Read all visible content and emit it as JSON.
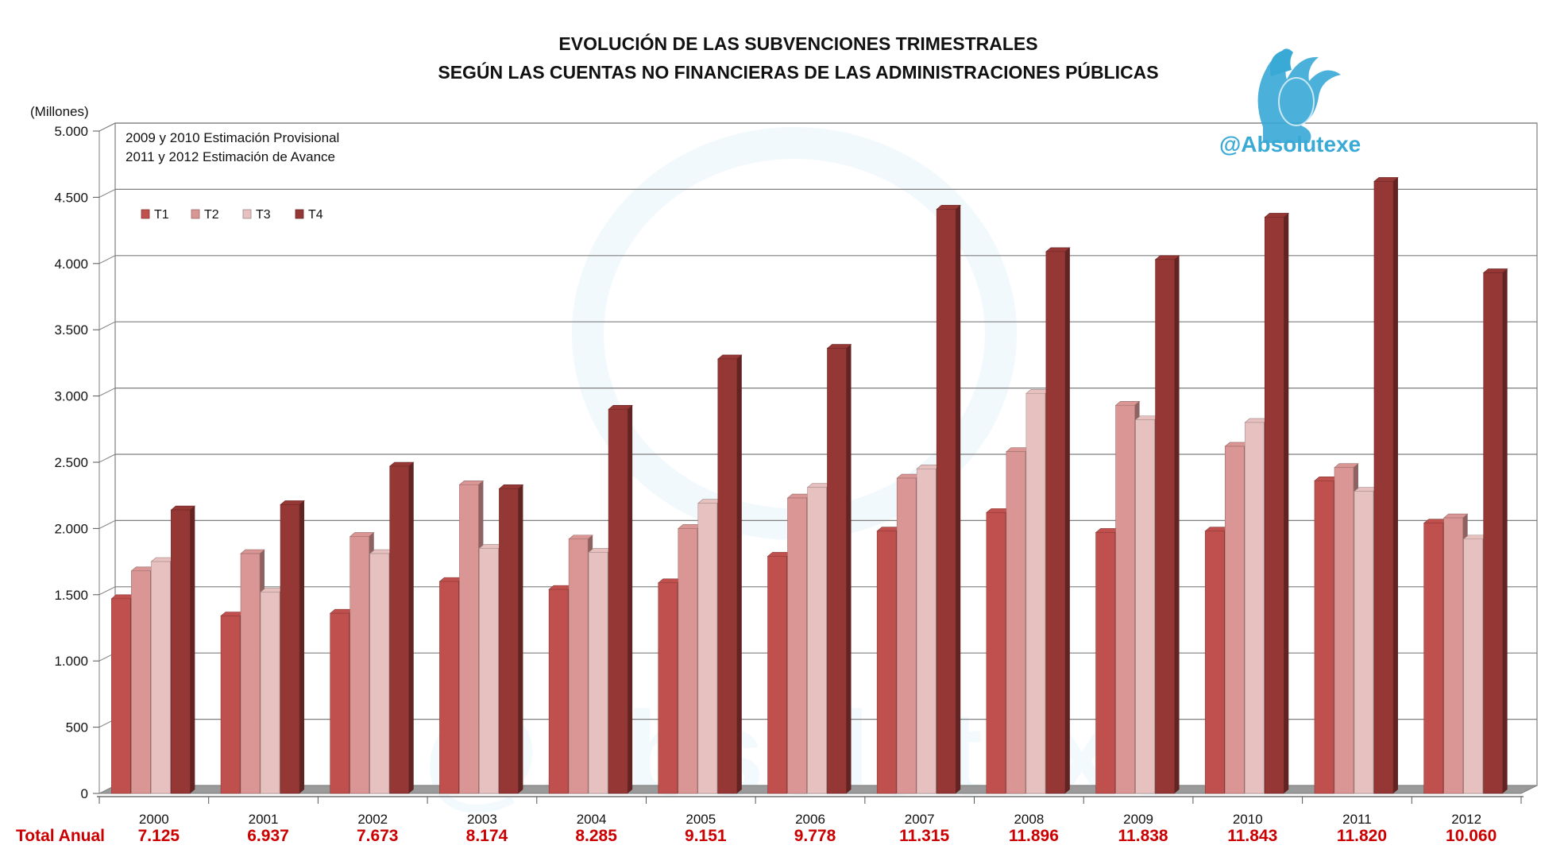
{
  "chart_data": {
    "type": "bar",
    "title_lines": [
      "EVOLUCIÓN DE LAS SUBVENCIONES TRIMESTRALES",
      "SEGÚN LAS CUENTAS NO FINANCIERAS DE LAS ADMINISTRACIONES PÚBLICAS"
    ],
    "unit_label": "(Millones)",
    "notes": [
      "2009 y 2010 Estimación Provisional",
      "2011 y 2012 Estimación de Avance"
    ],
    "categories": [
      "2000",
      "2001",
      "2002",
      "2003",
      "2004",
      "2005",
      "2006",
      "2007",
      "2008",
      "2009",
      "2010",
      "2011",
      "2012"
    ],
    "series": [
      {
        "name": "T1",
        "values": [
          1470,
          1340,
          1360,
          1600,
          1540,
          1590,
          1790,
          1980,
          2120,
          1970,
          1980,
          2360,
          2040
        ]
      },
      {
        "name": "T2",
        "values": [
          1680,
          1810,
          1940,
          2330,
          1920,
          2000,
          2230,
          2380,
          2580,
          2930,
          2620,
          2460,
          2080
        ]
      },
      {
        "name": "T3",
        "values": [
          1750,
          1520,
          1810,
          1850,
          1820,
          2190,
          2310,
          2450,
          3020,
          2820,
          2800,
          2280,
          1920
        ]
      },
      {
        "name": "T4",
        "values": [
          2140,
          2180,
          2470,
          2300,
          2900,
          3280,
          3360,
          4410,
          4090,
          4030,
          4350,
          4620,
          3930
        ]
      }
    ],
    "ylim": [
      0,
      5000
    ],
    "yticks": [
      0,
      500,
      1000,
      1500,
      2000,
      2500,
      3000,
      3500,
      4000,
      4500,
      5000
    ],
    "ytick_labels": [
      "0",
      "500",
      "1.000",
      "1.500",
      "2.000",
      "2.500",
      "3.000",
      "3.500",
      "4.000",
      "4.500",
      "5.000"
    ],
    "grid": true,
    "legend_position": "top-left",
    "totals_label": "Total Anual",
    "totals": [
      "7.125",
      "6.937",
      "7.673",
      "8.174",
      "8.285",
      "9.151",
      "9.778",
      "11.315",
      "11.896",
      "11.838",
      "11.843",
      "11.820",
      "10.060"
    ],
    "colors": {
      "T1": "#c0504d",
      "T2": "#d99694",
      "T3": "#e6c1c0",
      "T4": "#953735"
    }
  },
  "watermark": {
    "handle": "@Absolutexe",
    "logo": "griffin-logo-icon",
    "color": "#39a9d6"
  }
}
